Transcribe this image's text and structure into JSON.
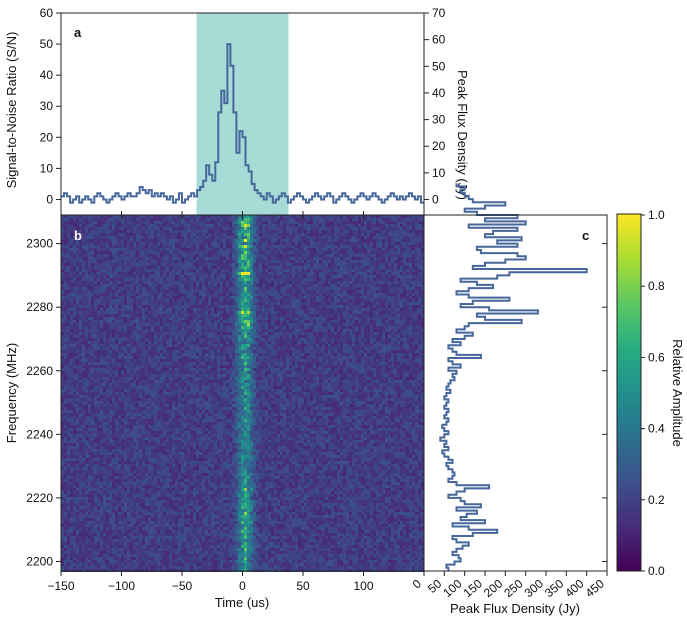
{
  "chart_data": [
    {
      "panel": "a",
      "type": "line",
      "xlabel": "",
      "ylabel": "Signal-to-Noise Ratio (S/N)",
      "ylabel_right": "Peak Flux Density (Jy)",
      "xlim": [
        -150,
        150
      ],
      "ylim": [
        -5,
        60
      ],
      "ylim_right": [
        -5.8,
        70
      ],
      "yticks": [
        0,
        10,
        20,
        30,
        40,
        50,
        60
      ],
      "yticks_right": [
        0,
        10,
        20,
        30,
        40,
        50,
        60,
        70
      ],
      "shaded_region": [
        -38,
        38
      ],
      "shade_color": "#a7dbd5",
      "line_color": "#46679b",
      "series": [
        {
          "x_start": -150,
          "bin_width": 2.5,
          "values": [
            1,
            2,
            1,
            -1,
            0,
            1,
            -1,
            0,
            1,
            0,
            -1,
            1,
            2,
            1,
            0,
            -1,
            0,
            1,
            2,
            1,
            0,
            1,
            2,
            1,
            1,
            2,
            4,
            3,
            2,
            3,
            1,
            2,
            1,
            2,
            1,
            0,
            1,
            -1,
            0,
            2,
            -1,
            0,
            1,
            2,
            1,
            3,
            4,
            6,
            11,
            8,
            6,
            12,
            28,
            35,
            31,
            50,
            43,
            28,
            15,
            22,
            20,
            11,
            9,
            5,
            3,
            2,
            1,
            0,
            2,
            1,
            -1,
            0,
            1,
            2,
            1,
            -1,
            0,
            1,
            2,
            1,
            0,
            -1,
            0,
            1,
            2,
            1,
            0,
            1,
            2,
            1,
            -1,
            0,
            1,
            2,
            1,
            0,
            -1,
            0,
            1,
            2,
            1,
            0,
            1,
            2,
            1,
            0,
            -1,
            0,
            1,
            2,
            1,
            0,
            1,
            0,
            1,
            2,
            1,
            0,
            1,
            -1
          ]
        }
      ]
    },
    {
      "panel": "b",
      "type": "heatmap",
      "xlabel": "Time (us)",
      "ylabel": "Frequency (MHz)",
      "xlim": [
        -150,
        150
      ],
      "ylim": [
        2197,
        2309
      ],
      "xticks": [
        -150,
        -100,
        -50,
        0,
        50,
        100
      ],
      "yticks": [
        2200,
        2220,
        2240,
        2260,
        2280,
        2300
      ],
      "colormap": "viridis"
    },
    {
      "panel": "c",
      "type": "line",
      "xlabel": "Peak Flux Density (Jy)",
      "ylabel": "",
      "xlim": [
        0,
        450
      ],
      "ylim": [
        2197,
        2309
      ],
      "xticks": [
        0,
        50,
        100,
        150,
        200,
        250,
        300,
        350,
        400,
        450
      ],
      "line_color": "#46679b",
      "series": [
        {
          "y_start": 2197,
          "bin_height": 1,
          "values": [
            60,
            55,
            75,
            90,
            85,
            70,
            80,
            95,
            110,
            80,
            70,
            120,
            180,
            110,
            70,
            150,
            90,
            105,
            130,
            80,
            140,
            100,
            90,
            60,
            80,
            100,
            160,
            80,
            60,
            70,
            75,
            70,
            60,
            55,
            70,
            60,
            50,
            45,
            60,
            50,
            55,
            40,
            50,
            60,
            50,
            45,
            55,
            60,
            50,
            55,
            60,
            50,
            55,
            60,
            50,
            55,
            65,
            55,
            60,
            65,
            75,
            70,
            80,
            60,
            90,
            70,
            60,
            140,
            80,
            70,
            60,
            90,
            70,
            100,
            120,
            80,
            100,
            110,
            240,
            150,
            130,
            280,
            160,
            90,
            120,
            210,
            110,
            80,
            110,
            170,
            130,
            90,
            180,
            210,
            400,
            120,
            150,
            200,
            250,
            230,
            140,
            130,
            230,
            180,
            240,
            150,
            170,
            230,
            110,
            250,
            150,
            230,
            130,
            100,
            150,
            200,
            120,
            110,
            100,
            90,
            100,
            80
          ]
        }
      ]
    },
    {
      "panel": "colorbar",
      "type": "heatmap",
      "label": "Relative Amplitude",
      "range": [
        0,
        1
      ],
      "ticks": [
        "0.0",
        "0.2",
        "0.4",
        "0.6",
        "0.8",
        "1.0"
      ],
      "colormap": "viridis"
    }
  ],
  "panel_labels": [
    "a",
    "b",
    "c"
  ]
}
